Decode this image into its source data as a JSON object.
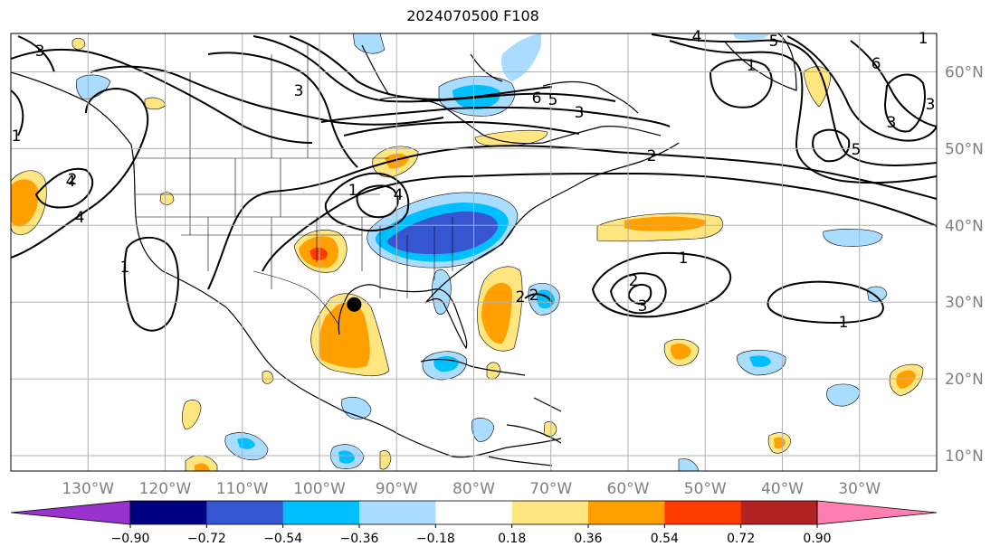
{
  "title": "2024070500 F108",
  "map": {
    "projection": "PlateCarree",
    "lon_range": [
      -140,
      -20
    ],
    "lat_range": [
      8,
      65
    ],
    "gridlines": true,
    "lon_ticks": [
      -130,
      -120,
      -110,
      -100,
      -90,
      -80,
      -70,
      -60,
      -50,
      -40,
      -30
    ],
    "lon_tick_labels": [
      "130°W",
      "120°W",
      "110°W",
      "100°W",
      "90°W",
      "80°W",
      "70°W",
      "60°W",
      "50°W",
      "40°W",
      "30°W"
    ],
    "lat_ticks": [
      10,
      20,
      30,
      40,
      50,
      60
    ],
    "lat_tick_labels": [
      "10°N",
      "20°N",
      "30°N",
      "40°N",
      "50°N",
      "60°N"
    ],
    "marker": {
      "lon": -95.5,
      "lat": 29.7,
      "color": "#000000"
    }
  },
  "colorbar": {
    "orientation": "horizontal",
    "extend": "both",
    "tick_labels": [
      "−0.90",
      "−0.72",
      "−0.54",
      "−0.36",
      "−0.18",
      "0.18",
      "0.36",
      "0.54",
      "0.72",
      "0.90"
    ],
    "colors": [
      "#9933cc",
      "#000080",
      "#3655d0",
      "#00bfff",
      "#aadcff",
      "#ffffff",
      "#ffe680",
      "#ffa000",
      "#ff3c00",
      "#b22222",
      "#ff7fb0"
    ]
  },
  "contour_labels": [
    "3",
    "4",
    "4",
    "1",
    "2",
    "1",
    "6",
    "5",
    "3",
    "2",
    "1",
    "4",
    "6",
    "5",
    "3",
    "4",
    "5",
    "3",
    "1",
    "2",
    "3",
    "1",
    "1",
    "2",
    "3",
    "1",
    "2"
  ],
  "colors": {
    "grid": "#b0b0b0",
    "coast": "#000000",
    "contour": "#000000",
    "tick_text": "#808080"
  }
}
